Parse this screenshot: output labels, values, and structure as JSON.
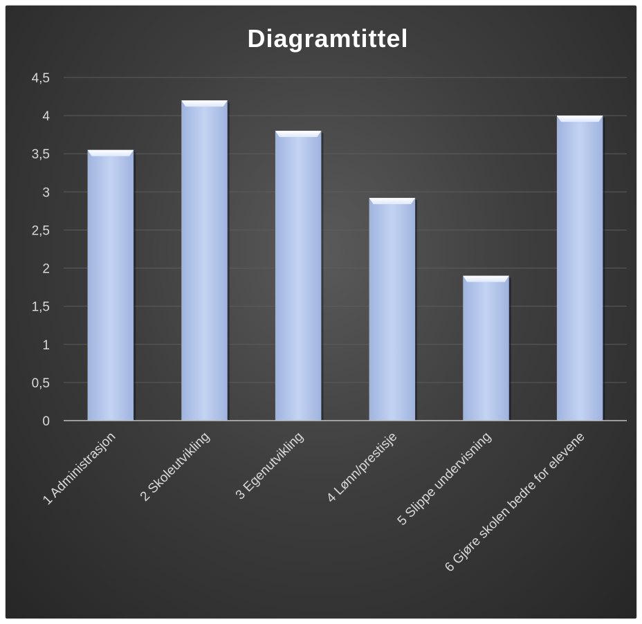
{
  "chart_data": {
    "type": "bar",
    "title": "Diagramtittel",
    "categories": [
      "1 Administrasjon",
      "2 Skoleutvikling",
      "3 Egenutvikling",
      "4 Lønn/prestisje",
      "5 Slippe undervisning",
      "6 Gjøre skolen bedre for elevene"
    ],
    "values": [
      3.55,
      4.2,
      3.8,
      2.92,
      1.9,
      4.0
    ],
    "ylim": [
      0,
      4.5
    ],
    "yticks": [
      "0",
      "0,5",
      "1",
      "1,5",
      "2",
      "2,5",
      "3",
      "3,5",
      "4",
      "4,5"
    ],
    "grid": true,
    "legend": "none",
    "colors": {
      "bar_top": "#dfe8fb",
      "bar_mid": "#c3d3f3",
      "bar_bottom": "#9fb3de",
      "grid": "#5c5c5c",
      "axis": "#bfbfbf",
      "text": "#d9d9d9",
      "title": "#ffffff"
    }
  }
}
